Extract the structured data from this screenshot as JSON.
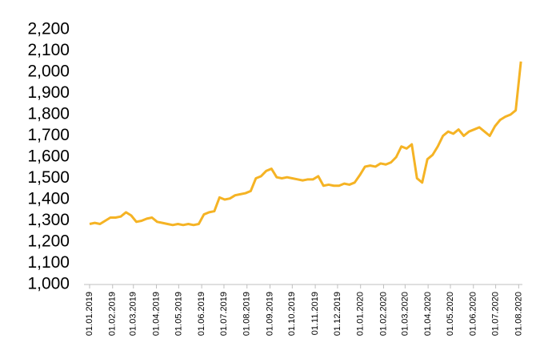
{
  "chart_data": {
    "type": "line",
    "x": [
      "2019-01-01",
      "2019-01-08",
      "2019-01-15",
      "2019-01-22",
      "2019-01-29",
      "2019-02-05",
      "2019-02-12",
      "2019-02-19",
      "2019-02-26",
      "2019-03-05",
      "2019-03-12",
      "2019-03-19",
      "2019-03-26",
      "2019-04-02",
      "2019-04-09",
      "2019-04-16",
      "2019-04-23",
      "2019-04-30",
      "2019-05-07",
      "2019-05-14",
      "2019-05-21",
      "2019-05-28",
      "2019-06-04",
      "2019-06-11",
      "2019-06-18",
      "2019-06-25",
      "2019-07-02",
      "2019-07-09",
      "2019-07-16",
      "2019-07-23",
      "2019-07-30",
      "2019-08-06",
      "2019-08-13",
      "2019-08-20",
      "2019-08-27",
      "2019-09-03",
      "2019-09-10",
      "2019-09-17",
      "2019-09-24",
      "2019-10-01",
      "2019-10-08",
      "2019-10-15",
      "2019-10-22",
      "2019-10-29",
      "2019-11-05",
      "2019-11-12",
      "2019-11-19",
      "2019-11-26",
      "2019-12-03",
      "2019-12-10",
      "2019-12-17",
      "2019-12-24",
      "2019-12-31",
      "2020-01-07",
      "2020-01-14",
      "2020-01-21",
      "2020-01-28",
      "2020-02-04",
      "2020-02-11",
      "2020-02-18",
      "2020-02-25",
      "2020-03-03",
      "2020-03-10",
      "2020-03-17",
      "2020-03-24",
      "2020-03-31",
      "2020-04-07",
      "2020-04-14",
      "2020-04-21",
      "2020-04-28",
      "2020-05-05",
      "2020-05-12",
      "2020-05-19",
      "2020-05-26",
      "2020-06-02",
      "2020-06-09",
      "2020-06-16",
      "2020-06-23",
      "2020-06-30",
      "2020-07-07",
      "2020-07-14",
      "2020-07-21",
      "2020-07-28",
      "2020-08-04"
    ],
    "series": [
      {
        "color": "#f5b324",
        "values": [
          1285,
          1290,
          1285,
          1300,
          1315,
          1315,
          1320,
          1340,
          1325,
          1295,
          1300,
          1310,
          1315,
          1295,
          1290,
          1285,
          1280,
          1285,
          1280,
          1285,
          1280,
          1285,
          1330,
          1340,
          1345,
          1410,
          1400,
          1405,
          1420,
          1425,
          1430,
          1440,
          1500,
          1510,
          1535,
          1545,
          1505,
          1500,
          1505,
          1500,
          1495,
          1490,
          1495,
          1495,
          1510,
          1465,
          1470,
          1465,
          1465,
          1475,
          1470,
          1480,
          1515,
          1555,
          1560,
          1555,
          1570,
          1565,
          1575,
          1600,
          1650,
          1640,
          1660,
          1500,
          1480,
          1590,
          1610,
          1650,
          1700,
          1720,
          1710,
          1730,
          1700,
          1720,
          1730,
          1740,
          1720,
          1700,
          1745,
          1775,
          1790,
          1800,
          1820,
          2050
        ]
      }
    ],
    "xlim": [
      "2019-01-01",
      "2020-08-06"
    ],
    "xticks": [
      {
        "value": "2019-01-01",
        "label": "01.01.2019"
      },
      {
        "value": "2019-02-01",
        "label": "01.02.2019"
      },
      {
        "value": "2019-03-01",
        "label": "01.03.2019"
      },
      {
        "value": "2019-04-01",
        "label": "01.04.2019"
      },
      {
        "value": "2019-05-01",
        "label": "01.05.2019"
      },
      {
        "value": "2019-06-01",
        "label": "01.06.2019"
      },
      {
        "value": "2019-07-01",
        "label": "01.07.2019"
      },
      {
        "value": "2019-08-01",
        "label": "01.08.2019"
      },
      {
        "value": "2019-09-01",
        "label": "01.09.2019"
      },
      {
        "value": "2019-10-01",
        "label": "01.10.2019"
      },
      {
        "value": "2019-11-01",
        "label": "01.11.2019"
      },
      {
        "value": "2019-12-01",
        "label": "01.12.2019"
      },
      {
        "value": "2020-01-01",
        "label": "01.01.2020"
      },
      {
        "value": "2020-02-01",
        "label": "01.02.2020"
      },
      {
        "value": "2020-03-01",
        "label": "01.03.2020"
      },
      {
        "value": "2020-04-01",
        "label": "01.04.2020"
      },
      {
        "value": "2020-05-01",
        "label": "01.05.2020"
      },
      {
        "value": "2020-06-01",
        "label": "01.06.2020"
      },
      {
        "value": "2020-07-01",
        "label": "01.07.2020"
      },
      {
        "value": "2020-08-01",
        "label": "01.08.2020"
      }
    ],
    "ylim": [
      1000,
      2200
    ],
    "yticks": [
      {
        "value": 1000,
        "label": "1,000"
      },
      {
        "value": 1100,
        "label": "1,100"
      },
      {
        "value": 1200,
        "label": "1,200"
      },
      {
        "value": 1300,
        "label": "1,300"
      },
      {
        "value": 1400,
        "label": "1,400"
      },
      {
        "value": 1500,
        "label": "1,500"
      },
      {
        "value": 1600,
        "label": "1,600"
      },
      {
        "value": 1700,
        "label": "1,700"
      },
      {
        "value": 1800,
        "label": "1,800"
      },
      {
        "value": 1900,
        "label": "1,900"
      },
      {
        "value": 2000,
        "label": "2,000"
      },
      {
        "value": 2100,
        "label": "2,100"
      },
      {
        "value": 2200,
        "label": "2,200"
      }
    ],
    "grid": false
  }
}
